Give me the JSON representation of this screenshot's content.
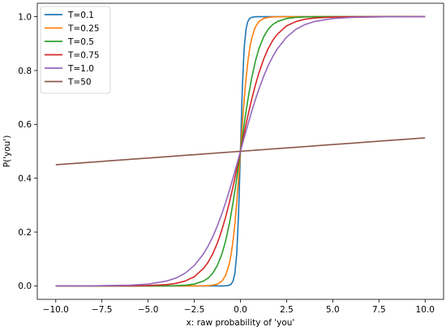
{
  "chart_data": {
    "type": "line",
    "title": "",
    "xlabel": "x: raw probability of 'you'",
    "ylabel": "P('you')",
    "xlim": [
      -11.0,
      11.0
    ],
    "ylim": [
      -0.05,
      1.05
    ],
    "xticks": [
      -10.0,
      -7.5,
      -5.0,
      -2.5,
      0.0,
      2.5,
      5.0,
      7.5,
      10.0
    ],
    "xtick_labels": [
      "−10.0",
      "−7.5",
      "−5.0",
      "−2.5",
      "0.0",
      "2.5",
      "5.0",
      "7.5",
      "10.0"
    ],
    "yticks": [
      0.0,
      0.2,
      0.4,
      0.6,
      0.8,
      1.0
    ],
    "ytick_labels": [
      "0.0",
      "0.2",
      "0.4",
      "0.6",
      "0.8",
      "1.0"
    ],
    "grid": false,
    "legend": "top-left",
    "x": [
      -10.0,
      -8.0,
      -6.0,
      -5.0,
      -4.0,
      -3.5,
      -3.0,
      -2.5,
      -2.0,
      -1.75,
      -1.5,
      -1.25,
      -1.0,
      -0.8,
      -0.6,
      -0.5,
      -0.4,
      -0.3,
      -0.2,
      -0.1,
      0.0,
      0.1,
      0.2,
      0.3,
      0.4,
      0.5,
      0.6,
      0.8,
      1.0,
      1.25,
      1.5,
      1.75,
      2.0,
      2.5,
      3.0,
      3.5,
      4.0,
      5.0,
      6.0,
      8.0,
      10.0
    ],
    "series": [
      {
        "name": "T=0.1",
        "color": "#1f77b4",
        "values": [
          0.0,
          0.0,
          0.0,
          0.0,
          0.0,
          0.0,
          0.0,
          0.0,
          0.0,
          0.0,
          0.0,
          0.0,
          0.0,
          0.0003,
          0.0025,
          0.0067,
          0.018,
          0.047,
          0.119,
          0.269,
          0.5,
          0.731,
          0.881,
          0.953,
          0.982,
          0.9933,
          0.9975,
          0.9997,
          1.0,
          1.0,
          1.0,
          1.0,
          1.0,
          1.0,
          1.0,
          1.0,
          1.0,
          1.0,
          1.0,
          1.0,
          1.0
        ]
      },
      {
        "name": "T=0.25",
        "color": "#ff7f0e",
        "values": [
          0.0,
          0.0,
          0.0,
          0.0,
          0.0,
          0.0,
          0.0,
          0.0,
          0.0003,
          0.0009,
          0.0025,
          0.0067,
          0.018,
          0.039,
          0.083,
          0.119,
          0.168,
          0.231,
          0.31,
          0.401,
          0.5,
          0.599,
          0.69,
          0.769,
          0.832,
          0.881,
          0.917,
          0.961,
          0.982,
          0.9933,
          0.9975,
          0.9991,
          0.9997,
          1.0,
          1.0,
          1.0,
          1.0,
          1.0,
          1.0,
          1.0,
          1.0
        ]
      },
      {
        "name": "T=0.5",
        "color": "#2ca02c",
        "values": [
          0.0,
          0.0,
          0.0,
          0.0,
          0.0003,
          0.0009,
          0.0025,
          0.0067,
          0.018,
          0.029,
          0.047,
          0.076,
          0.119,
          0.168,
          0.231,
          0.269,
          0.31,
          0.354,
          0.401,
          0.45,
          0.5,
          0.55,
          0.599,
          0.646,
          0.69,
          0.731,
          0.769,
          0.832,
          0.881,
          0.924,
          0.953,
          0.971,
          0.982,
          0.9933,
          0.9975,
          0.9991,
          0.9997,
          1.0,
          1.0,
          1.0,
          1.0
        ]
      },
      {
        "name": "T=0.75",
        "color": "#d62728",
        "values": [
          0.0,
          0.0,
          0.0003,
          0.0013,
          0.0048,
          0.0093,
          0.018,
          0.034,
          0.065,
          0.088,
          0.119,
          0.159,
          0.209,
          0.256,
          0.31,
          0.339,
          0.369,
          0.401,
          0.434,
          0.467,
          0.5,
          0.533,
          0.566,
          0.599,
          0.631,
          0.661,
          0.69,
          0.744,
          0.791,
          0.841,
          0.881,
          0.912,
          0.935,
          0.966,
          0.982,
          0.9907,
          0.9952,
          0.9987,
          0.9997,
          1.0,
          1.0
        ]
      },
      {
        "name": "T=1.0",
        "color": "#9467bd",
        "values": [
          0.0,
          0.0003,
          0.0025,
          0.0067,
          0.018,
          0.029,
          0.047,
          0.076,
          0.119,
          0.148,
          0.182,
          0.223,
          0.269,
          0.31,
          0.354,
          0.378,
          0.401,
          0.426,
          0.45,
          0.475,
          0.5,
          0.525,
          0.55,
          0.574,
          0.599,
          0.622,
          0.646,
          0.69,
          0.731,
          0.777,
          0.818,
          0.852,
          0.881,
          0.924,
          0.953,
          0.971,
          0.982,
          0.9933,
          0.9975,
          0.9997,
          1.0
        ]
      },
      {
        "name": "T=50",
        "color": "#8c564b",
        "values": [
          0.45,
          0.46,
          0.47,
          0.475,
          0.48,
          0.4825,
          0.485,
          0.4875,
          0.49,
          0.4913,
          0.4925,
          0.4938,
          0.495,
          0.496,
          0.497,
          0.4975,
          0.498,
          0.4985,
          0.499,
          0.4995,
          0.5,
          0.5005,
          0.501,
          0.5015,
          0.502,
          0.5025,
          0.503,
          0.504,
          0.505,
          0.5062,
          0.5075,
          0.5087,
          0.51,
          0.5125,
          0.515,
          0.5175,
          0.52,
          0.525,
          0.53,
          0.54,
          0.55
        ]
      }
    ]
  }
}
